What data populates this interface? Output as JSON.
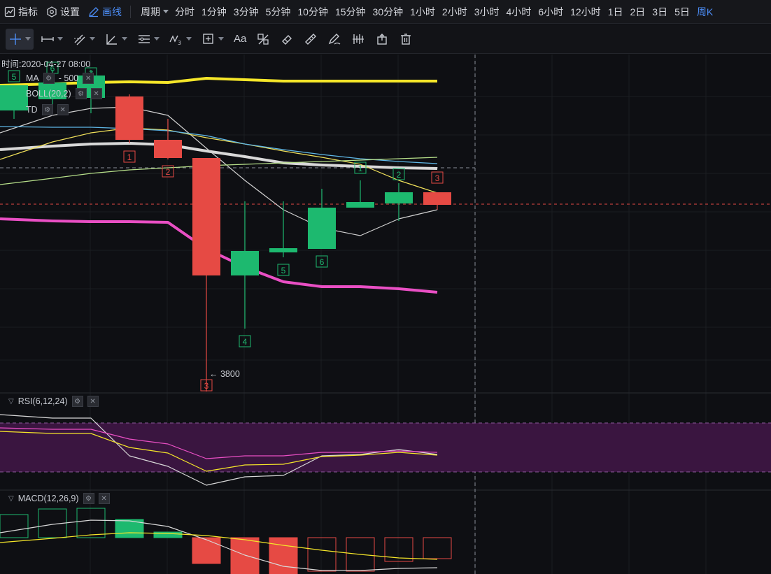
{
  "topbar": {
    "indicators_label": "指标",
    "settings_label": "设置",
    "draw_label": "画线",
    "period_label": "周期",
    "periods": [
      "分时",
      "1分钟",
      "3分钟",
      "5分钟",
      "10分钟",
      "15分钟",
      "30分钟",
      "1小时",
      "2小时",
      "3小时",
      "4小时",
      "6小时",
      "12小时",
      "1日",
      "2日",
      "3日",
      "5日",
      "周K"
    ],
    "active_period": "周K"
  },
  "toolbar": {
    "tools": [
      "crosshair-icon",
      "horizontal-ray-icon",
      "parallel-lines-icon",
      "angle-icon",
      "fib-icon",
      "wave-icon",
      "measure-icon",
      "text-icon",
      "pattern-icon",
      "eraser-icon",
      "ruler-icon",
      "brush-icon",
      "bar-pattern-icon",
      "export-icon",
      "trash-icon"
    ],
    "text_tool_label": "Aa"
  },
  "legend": {
    "time_label": "时间:2020-04-27 08:00",
    "ma_label": "MA",
    "boll_label": "BOLL(20,2)",
    "td_label": "TD",
    "ma_extra": "- 500",
    "rsi_label": "RSI(6,12,24)",
    "macd_label": "MACD(12,26,9)"
  },
  "chart_data": {
    "type": "candlestick",
    "low_annotation": "← 3800",
    "colors": {
      "up": "#1db96f",
      "down": "#e64a44",
      "boll_upper": "#f5e629",
      "boll_lower": "#e94fc4",
      "boll_mid": "#d8d8d8",
      "rsi_band": "#3a1540"
    },
    "candles": [
      {
        "label": "",
        "dir": "up",
        "td": "5"
      },
      {
        "label": "",
        "dir": "up",
        "td": "6"
      },
      {
        "label": "",
        "dir": "up",
        "td": "7"
      },
      {
        "label": "",
        "dir": "down",
        "td": "1"
      },
      {
        "label": "",
        "dir": "down",
        "td": "2"
      },
      {
        "label": "",
        "dir": "down",
        "td": "3"
      },
      {
        "label": "",
        "dir": "up",
        "td": "4"
      },
      {
        "label": "",
        "dir": "up",
        "td": "5"
      },
      {
        "label": "",
        "dir": "up",
        "td": "6"
      },
      {
        "label": "",
        "dir": "up",
        "td": "1"
      },
      {
        "label": "",
        "dir": "up",
        "td": "2"
      },
      {
        "label": "",
        "dir": "down",
        "td": "3"
      }
    ],
    "price_label": "3800"
  }
}
